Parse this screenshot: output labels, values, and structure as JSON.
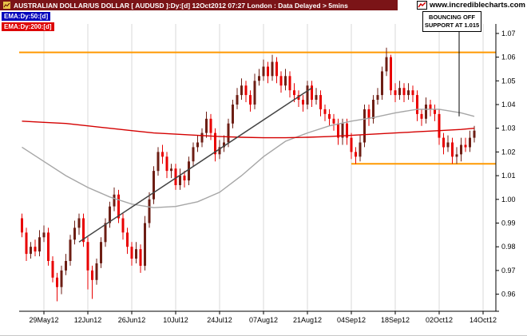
{
  "header": {
    "title": "AUSTRALIAN DOLLAR/US DOLLAR [ AUDUSD ]:Dy:[d]  12Oct2012 07:27 London : Data Delayed > 5mins",
    "bg_color": "#7b1417"
  },
  "logo": {
    "text": "www.incrediblecharts.com"
  },
  "legend": [
    {
      "label": "EMA:Dy:50:[d]",
      "box_color": "#0000bb"
    },
    {
      "label": "EMA:Dy:200:[d]",
      "box_color": "#dd0000"
    }
  ],
  "annotation": {
    "line1": "BOUNCING OFF",
    "line2": "SUPPORT AT 1.015",
    "target_price": 1.035
  },
  "chart_data": {
    "type": "candlestick",
    "title": "AUSTRALIAN DOLLAR/US DOLLAR [ AUDUSD ]:Dy:[d]",
    "symbol": "AUDUSD",
    "timeframe": "daily",
    "ylim": [
      0.953,
      1.074
    ],
    "y_ticks": [
      0.96,
      0.97,
      0.98,
      0.99,
      1.0,
      1.01,
      1.02,
      1.03,
      1.04,
      1.05,
      1.06,
      1.07
    ],
    "x_tick_labels": [
      "29May12",
      "12Jun12",
      "26Jun12",
      "10Jul12",
      "24Jul12",
      "07Aug12",
      "21Aug12",
      "04Sep12",
      "18Sep12",
      "02Oct12",
      "14Oct12"
    ],
    "x_tick_indices": [
      5,
      15,
      25,
      35,
      45,
      55,
      65,
      75,
      85,
      95,
      105
    ],
    "up_color": "#6d1e14",
    "down_color": "#e80000",
    "grid_color": "#d9d9d9",
    "candles": [
      [
        "22May12",
        0.992,
        0.994,
        0.984,
        0.986
      ],
      [
        "23May12",
        0.986,
        0.988,
        0.974,
        0.977
      ],
      [
        "24May12",
        0.977,
        0.982,
        0.975,
        0.98
      ],
      [
        "25May12",
        0.98,
        0.983,
        0.976,
        0.978
      ],
      [
        "28May12",
        0.978,
        0.987,
        0.976,
        0.984
      ],
      [
        "29May12",
        0.984,
        0.989,
        0.982,
        0.986
      ],
      [
        "30May12",
        0.986,
        0.988,
        0.972,
        0.974
      ],
      [
        "31May12",
        0.974,
        0.976,
        0.965,
        0.967
      ],
      [
        "01Jun12",
        0.967,
        0.969,
        0.957,
        0.963
      ],
      [
        "04Jun12",
        0.963,
        0.972,
        0.96,
        0.97
      ],
      [
        "05Jun12",
        0.97,
        0.977,
        0.968,
        0.974
      ],
      [
        "06Jun12",
        0.974,
        0.985,
        0.972,
        0.983
      ],
      [
        "07Jun12",
        0.983,
        0.991,
        0.981,
        0.988
      ],
      [
        "08Jun12",
        0.988,
        0.994,
        0.985,
        0.992
      ],
      [
        "11Jun12",
        0.992,
        0.994,
        0.98,
        0.982
      ],
      [
        "12Jun12",
        0.982,
        0.984,
        0.962,
        0.97
      ],
      [
        "13Jun12",
        0.97,
        0.972,
        0.958,
        0.966
      ],
      [
        "14Jun12",
        0.966,
        0.975,
        0.964,
        0.973
      ],
      [
        "15Jun12",
        0.973,
        0.984,
        0.971,
        0.982
      ],
      [
        "18Jun12",
        0.982,
        0.992,
        0.98,
        0.99
      ],
      [
        "19Jun12",
        0.99,
        0.999,
        0.988,
        0.997
      ],
      [
        "20Jun12",
        0.997,
        1.005,
        0.995,
        1.002
      ],
      [
        "21Jun12",
        1.002,
        1.004,
        0.99,
        0.992
      ],
      [
        "22Jun12",
        0.992,
        0.994,
        0.983,
        0.986
      ],
      [
        "25Jun12",
        0.986,
        0.988,
        0.977,
        0.98
      ],
      [
        "26Jun12",
        0.98,
        0.982,
        0.972,
        0.975
      ],
      [
        "27Jun12",
        0.975,
        0.982,
        0.973,
        0.979
      ],
      [
        "28Jun12",
        0.979,
        0.981,
        0.969,
        0.972
      ],
      [
        "29Jun12",
        0.972,
        0.993,
        0.97,
        0.99
      ],
      [
        "02Jul12",
        0.99,
        1.003,
        0.988,
        1.0
      ],
      [
        "03Jul12",
        1.0,
        1.014,
        0.998,
        1.012
      ],
      [
        "04Jul12",
        1.012,
        1.022,
        1.01,
        1.02
      ],
      [
        "05Jul12",
        1.02,
        1.023,
        1.015,
        1.018
      ],
      [
        "06Jul12",
        1.018,
        1.02,
        1.009,
        1.012
      ],
      [
        "09Jul12",
        1.012,
        1.015,
        1.009,
        1.013
      ],
      [
        "10Jul12",
        1.013,
        1.015,
        1.004,
        1.006
      ],
      [
        "11Jul12",
        1.006,
        1.013,
        1.004,
        1.01
      ],
      [
        "12Jul12",
        1.01,
        1.012,
        1.005,
        1.008
      ],
      [
        "13Jul12",
        1.008,
        1.018,
        1.006,
        1.016
      ],
      [
        "16Jul12",
        1.016,
        1.024,
        1.014,
        1.022
      ],
      [
        "17Jul12",
        1.022,
        1.027,
        1.02,
        1.024
      ],
      [
        "18Jul12",
        1.024,
        1.03,
        1.022,
        1.028
      ],
      [
        "19Jul12",
        1.028,
        1.037,
        1.026,
        1.034
      ],
      [
        "20Jul12",
        1.034,
        1.036,
        1.025,
        1.028
      ],
      [
        "23Jul12",
        1.028,
        1.03,
        1.016,
        1.019
      ],
      [
        "24Jul12",
        1.019,
        1.025,
        1.017,
        1.022
      ],
      [
        "25Jul12",
        1.022,
        1.027,
        1.02,
        1.024
      ],
      [
        "26Jul12",
        1.024,
        1.034,
        1.022,
        1.032
      ],
      [
        "27Jul12",
        1.032,
        1.042,
        1.03,
        1.04
      ],
      [
        "30Jul12",
        1.04,
        1.047,
        1.038,
        1.044
      ],
      [
        "31Jul12",
        1.044,
        1.051,
        1.042,
        1.048
      ],
      [
        "01Aug12",
        1.048,
        1.05,
        1.041,
        1.044
      ],
      [
        "02Aug12",
        1.044,
        1.046,
        1.037,
        1.04
      ],
      [
        "03Aug12",
        1.04,
        1.053,
        1.038,
        1.05
      ],
      [
        "06Aug12",
        1.05,
        1.055,
        1.048,
        1.052
      ],
      [
        "07Aug12",
        1.052,
        1.059,
        1.05,
        1.056
      ],
      [
        "08Aug12",
        1.056,
        1.058,
        1.049,
        1.052
      ],
      [
        "09Aug12",
        1.052,
        1.061,
        1.05,
        1.058
      ],
      [
        "10Aug12",
        1.058,
        1.06,
        1.049,
        1.052
      ],
      [
        "13Aug12",
        1.052,
        1.054,
        1.045,
        1.048
      ],
      [
        "14Aug12",
        1.048,
        1.055,
        1.046,
        1.052
      ],
      [
        "15Aug12",
        1.052,
        1.054,
        1.043,
        1.046
      ],
      [
        "16Aug12",
        1.046,
        1.049,
        1.041,
        1.044
      ],
      [
        "17Aug12",
        1.044,
        1.046,
        1.039,
        1.042
      ],
      [
        "20Aug12",
        1.042,
        1.044,
        1.037,
        1.04
      ],
      [
        "21Aug12",
        1.04,
        1.05,
        1.038,
        1.048
      ],
      [
        "22Aug12",
        1.048,
        1.05,
        1.039,
        1.042
      ],
      [
        "23Aug12",
        1.042,
        1.047,
        1.04,
        1.044
      ],
      [
        "24Aug12",
        1.044,
        1.046,
        1.035,
        1.038
      ],
      [
        "27Aug12",
        1.038,
        1.04,
        1.033,
        1.036
      ],
      [
        "28Aug12",
        1.036,
        1.038,
        1.031,
        1.034
      ],
      [
        "29Aug12",
        1.034,
        1.036,
        1.029,
        1.032
      ],
      [
        "30Aug12",
        1.032,
        1.034,
        1.023,
        1.026
      ],
      [
        "31Aug12",
        1.026,
        1.034,
        1.023,
        1.032
      ],
      [
        "03Sep12",
        1.032,
        1.034,
        1.023,
        1.026
      ],
      [
        "04Sep12",
        1.026,
        1.028,
        1.017,
        1.02
      ],
      [
        "05Sep12",
        1.02,
        1.022,
        1.015,
        1.018
      ],
      [
        "06Sep12",
        1.018,
        1.027,
        1.016,
        1.024
      ],
      [
        "07Sep12",
        1.024,
        1.04,
        1.022,
        1.038
      ],
      [
        "10Sep12",
        1.038,
        1.04,
        1.031,
        1.034
      ],
      [
        "11Sep12",
        1.034,
        1.044,
        1.032,
        1.042
      ],
      [
        "12Sep12",
        1.042,
        1.047,
        1.04,
        1.044
      ],
      [
        "13Sep12",
        1.044,
        1.056,
        1.042,
        1.054
      ],
      [
        "14Sep12",
        1.054,
        1.064,
        1.052,
        1.06
      ],
      [
        "17Sep12",
        1.06,
        1.061,
        1.044,
        1.046
      ],
      [
        "18Sep12",
        1.046,
        1.049,
        1.041,
        1.044
      ],
      [
        "19Sep12",
        1.044,
        1.05,
        1.042,
        1.047
      ],
      [
        "20Sep12",
        1.047,
        1.049,
        1.041,
        1.044
      ],
      [
        "21Sep12",
        1.044,
        1.049,
        1.042,
        1.046
      ],
      [
        "24Sep12",
        1.046,
        1.048,
        1.041,
        1.044
      ],
      [
        "25Sep12",
        1.044,
        1.046,
        1.033,
        1.036
      ],
      [
        "26Sep12",
        1.036,
        1.038,
        1.031,
        1.034
      ],
      [
        "27Sep12",
        1.034,
        1.043,
        1.032,
        1.04
      ],
      [
        "28Sep12",
        1.04,
        1.042,
        1.035,
        1.038
      ],
      [
        "01Oct12",
        1.038,
        1.04,
        1.033,
        1.036
      ],
      [
        "02Oct12",
        1.036,
        1.038,
        1.023,
        1.026
      ],
      [
        "03Oct12",
        1.026,
        1.028,
        1.019,
        1.022
      ],
      [
        "04Oct12",
        1.022,
        1.027,
        1.02,
        1.024
      ],
      [
        "05Oct12",
        1.024,
        1.026,
        1.015,
        1.018
      ],
      [
        "08Oct12",
        1.018,
        1.022,
        1.015,
        1.019
      ],
      [
        "09Oct12",
        1.019,
        1.026,
        1.016,
        1.023
      ],
      [
        "10Oct12",
        1.023,
        1.026,
        1.02,
        1.022
      ],
      [
        "11Oct12",
        1.022,
        1.029,
        1.02,
        1.026
      ],
      [
        "12Oct12",
        1.026,
        1.031,
        1.024,
        1.029
      ]
    ],
    "overlays": {
      "ema50": {
        "period": 50,
        "color": "#a6a6a6",
        "points": [
          [
            0,
            1.022
          ],
          [
            5,
            1.016
          ],
          [
            10,
            1.01
          ],
          [
            15,
            1.005
          ],
          [
            20,
            1.001
          ],
          [
            25,
            0.998
          ],
          [
            30,
            0.9965
          ],
          [
            35,
            0.997
          ],
          [
            40,
            0.999
          ],
          [
            45,
            1.003
          ],
          [
            50,
            1.01
          ],
          [
            55,
            1.018
          ],
          [
            60,
            1.0245
          ],
          [
            65,
            1.028
          ],
          [
            70,
            1.031
          ],
          [
            75,
            1.033
          ],
          [
            80,
            1.0345
          ],
          [
            85,
            1.0365
          ],
          [
            90,
            1.038
          ],
          [
            95,
            1.038
          ],
          [
            100,
            1.0365
          ],
          [
            103,
            1.035
          ]
        ]
      },
      "ema200": {
        "period": 200,
        "color": "#d40000",
        "points": [
          [
            0,
            1.033
          ],
          [
            5,
            1.0325
          ],
          [
            10,
            1.032
          ],
          [
            15,
            1.031
          ],
          [
            20,
            1.03
          ],
          [
            25,
            1.029
          ],
          [
            30,
            1.028
          ],
          [
            35,
            1.0275
          ],
          [
            40,
            1.027
          ],
          [
            45,
            1.0265
          ],
          [
            50,
            1.0262
          ],
          [
            55,
            1.026
          ],
          [
            60,
            1.026
          ],
          [
            65,
            1.0262
          ],
          [
            70,
            1.0265
          ],
          [
            75,
            1.027
          ],
          [
            80,
            1.0275
          ],
          [
            85,
            1.028
          ],
          [
            90,
            1.0285
          ],
          [
            95,
            1.029
          ],
          [
            100,
            1.0295
          ],
          [
            103,
            1.03
          ]
        ]
      },
      "resistance_line": {
        "price": 1.062,
        "color": "#ff9900"
      },
      "support_line": {
        "price": 1.015,
        "color": "#ff9900",
        "from_index": 75
      },
      "trendline": {
        "from": {
          "index": 13,
          "price": 0.982
        },
        "to": {
          "index": 66,
          "price": 1.047
        },
        "color": "#444444"
      }
    }
  }
}
